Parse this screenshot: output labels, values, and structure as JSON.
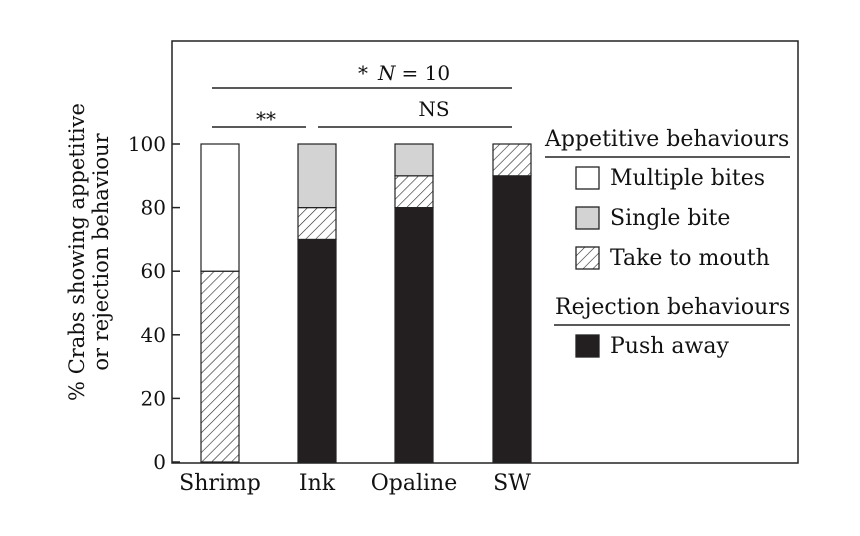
{
  "chart_data": {
    "type": "bar",
    "stacked": true,
    "categories": [
      "Shrimp",
      "Ink",
      "Opaline",
      "SW"
    ],
    "series": [
      {
        "name": "Push away",
        "group": "Rejection behaviours",
        "fill": "#231f20",
        "pattern": "solid",
        "values": [
          0,
          70,
          80,
          90
        ]
      },
      {
        "name": "Take to mouth",
        "group": "Appetitive behaviours",
        "fill": "#ffffff",
        "pattern": "hatch",
        "values": [
          60,
          10,
          10,
          10
        ]
      },
      {
        "name": "Single bite",
        "group": "Appetitive behaviours",
        "fill": "#d3d3d3",
        "pattern": "solid",
        "values": [
          0,
          20,
          10,
          0
        ]
      },
      {
        "name": "Multiple bites",
        "group": "Appetitive behaviours",
        "fill": "#ffffff",
        "pattern": "solid",
        "values": [
          40,
          0,
          0,
          0
        ]
      }
    ],
    "ylabel_lines": [
      "% Crabs showing appetitive",
      "or rejection behaviour"
    ],
    "ylim": [
      0,
      100
    ],
    "yticks": [
      "0",
      "20",
      "40",
      "60",
      "80",
      "100"
    ],
    "legend": {
      "placement": "right",
      "groups": [
        {
          "heading": "Appetitive behaviours",
          "items": [
            "Multiple bites",
            "Single bite",
            "Take to mouth"
          ]
        },
        {
          "heading": "Rejection behaviours",
          "items": [
            "Push away"
          ]
        }
      ]
    },
    "annotations": {
      "overall": {
        "star": "*",
        "n_label": "N",
        "n_value": "= 10",
        "from": "Shrimp",
        "to": "SW"
      },
      "pair": {
        "label": "**",
        "from": "Shrimp",
        "to": "Ink"
      },
      "group": {
        "label": "NS",
        "from": "Ink",
        "to": "SW"
      }
    }
  }
}
